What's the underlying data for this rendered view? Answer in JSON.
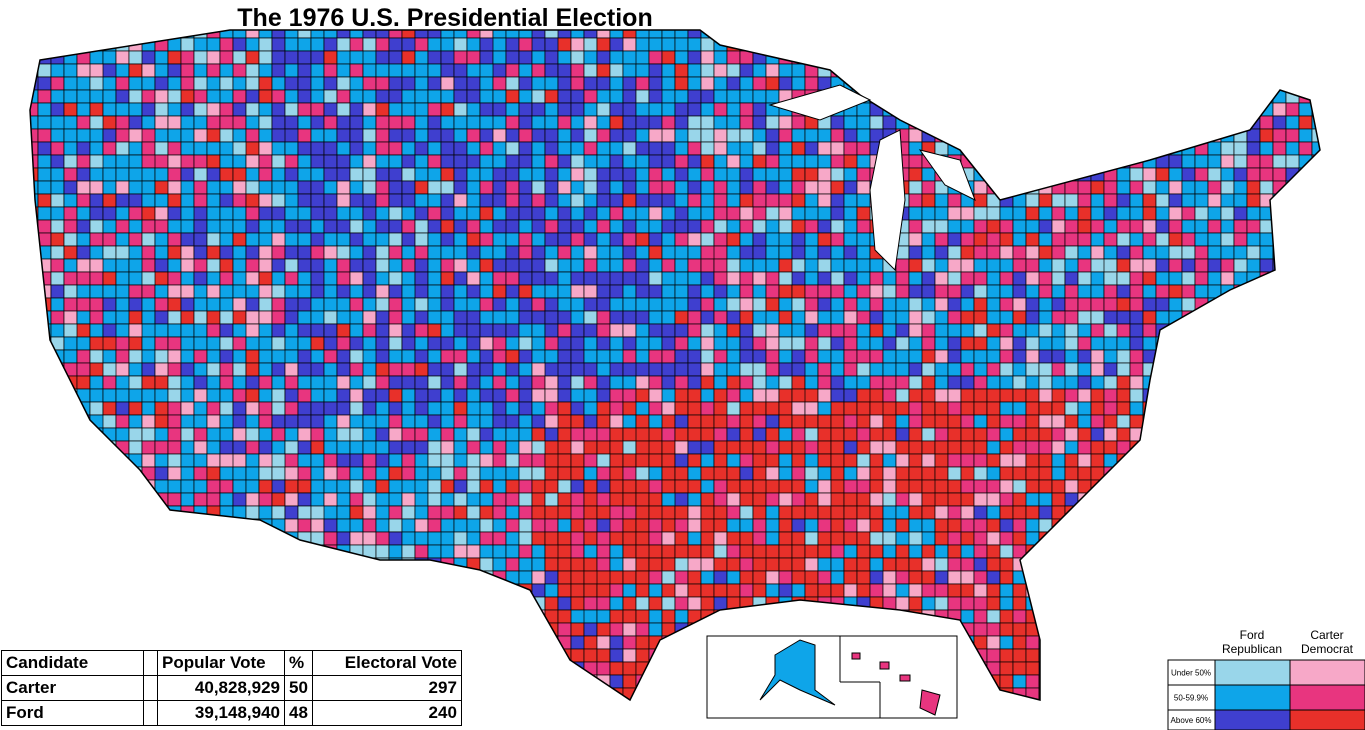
{
  "header": {
    "title": "The 1976 U.S. Presidential Election"
  },
  "table": {
    "columns": [
      "Candidate",
      "Popular Vote",
      "%",
      "Electoral Vote"
    ],
    "rows": [
      [
        "Carter",
        "40,828,929",
        50,
        297
      ],
      [
        "Ford",
        "39,148,940",
        48,
        240
      ]
    ]
  },
  "legend": {
    "columns": [
      {
        "name": [
          "Ford",
          "Republican"
        ],
        "colors": [
          "#99d6ea",
          "#0ea5e9",
          "#3f3fcf"
        ]
      },
      {
        "name": [
          "Carter",
          "Democrat"
        ],
        "colors": [
          "#f7a8c8",
          "#e8357f",
          "#e8302a"
        ]
      }
    ],
    "rows": [
      "Under 50%",
      "50-59.9%",
      "Above 60%"
    ]
  }
}
